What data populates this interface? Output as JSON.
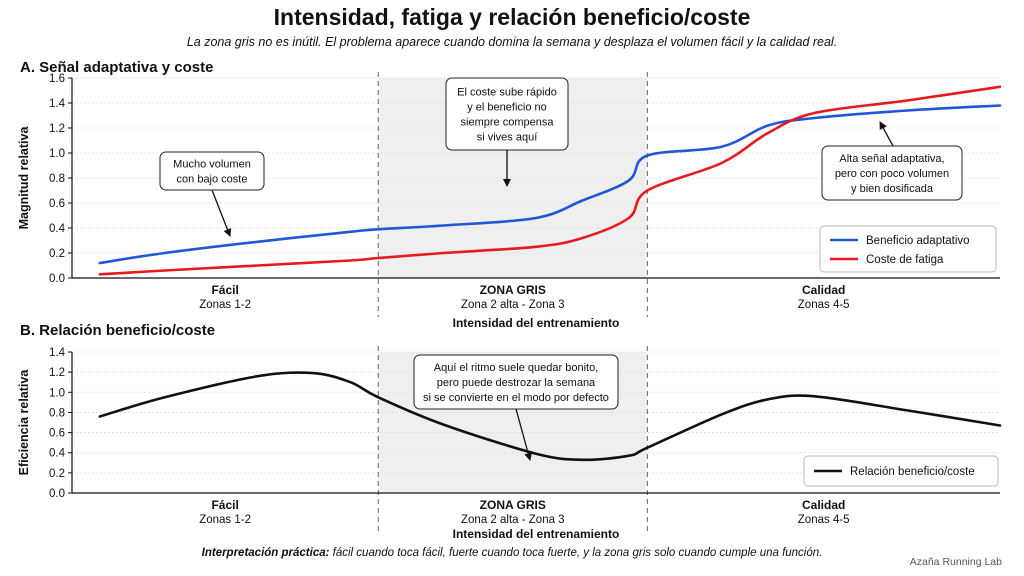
{
  "title": "Intensidad, fatiga y relación beneficio/coste",
  "subtitle": "La zona gris no es inútil. El problema aparece cuando domina la semana y desplaza el volumen fácil y la calidad real.",
  "footer": {
    "bold": "Interpretación práctica:",
    "rest": " fácil cuando toca fácil, fuerte cuando toca fuerte, y la zona gris solo cuando cumple una función."
  },
  "brand": "Azaña Running Lab",
  "colors": {
    "benefit": "#1f57d6",
    "cost": "#e8191f",
    "ratio": "#111111",
    "grey_zone": "#efefef"
  },
  "chart_data": [
    {
      "type": "line",
      "panel_title": "A.  Señal adaptativa y coste",
      "xlabel": "Intensidad del entrenamiento",
      "ylabel": "Magnitud relativa",
      "xlim": [
        0,
        10
      ],
      "ylim": [
        0,
        1.6
      ],
      "yticks": [
        "0.0",
        "0.2",
        "0.4",
        "0.6",
        "0.8",
        "1.0",
        "1.2",
        "1.4",
        "1.6"
      ],
      "grid": true,
      "shaded_region": [
        3.3,
        6.2
      ],
      "zones": [
        {
          "name": "Fácil",
          "sub": "Zonas 1-2"
        },
        {
          "name": "ZONA GRIS",
          "sub": "Zona 2 alta - Zona 3"
        },
        {
          "name": "Calidad",
          "sub": "Zonas 4-5"
        }
      ],
      "x": [
        0.3,
        1.0,
        2.0,
        3.0,
        3.3,
        4.0,
        5.0,
        5.5,
        6.0,
        6.2,
        7.0,
        7.5,
        8.0,
        9.0,
        10.0
      ],
      "series": [
        {
          "name": "Beneficio adaptativo",
          "values": [
            0.12,
            0.2,
            0.29,
            0.37,
            0.39,
            0.42,
            0.48,
            0.62,
            0.78,
            0.98,
            1.05,
            1.22,
            1.28,
            1.34,
            1.38
          ]
        },
        {
          "name": "Coste de fatiga",
          "values": [
            0.03,
            0.06,
            0.1,
            0.14,
            0.16,
            0.2,
            0.25,
            0.32,
            0.48,
            0.7,
            0.92,
            1.16,
            1.32,
            1.42,
            1.53
          ]
        }
      ],
      "legend": "bottom-right",
      "annotations": [
        "Mucho volumen\ncon bajo coste",
        "El coste sube rápido\ny el beneficio no\nsiempre compensa\nsi vives aquí",
        "Alta señal adaptativa,\npero con poco volumen\ny bien dosificada"
      ]
    },
    {
      "type": "line",
      "panel_title": "B.  Relación beneficio/coste",
      "xlabel": "Intensidad del entrenamiento",
      "ylabel": "Eficiencia relativa",
      "xlim": [
        0,
        10
      ],
      "ylim": [
        0,
        1.4
      ],
      "yticks": [
        "0.0",
        "0.2",
        "0.4",
        "0.6",
        "0.8",
        "1.0",
        "1.2",
        "1.4"
      ],
      "grid": true,
      "shaded_region": [
        3.3,
        6.2
      ],
      "zones": [
        {
          "name": "Fácil",
          "sub": "Zonas 1-2"
        },
        {
          "name": "ZONA GRIS",
          "sub": "Zona 2 alta - Zona 3"
        },
        {
          "name": "Calidad",
          "sub": "Zonas 4-5"
        }
      ],
      "x": [
        0.3,
        1.0,
        2.0,
        2.6,
        3.0,
        3.3,
        4.0,
        5.0,
        5.5,
        6.0,
        6.2,
        7.0,
        7.5,
        8.0,
        9.0,
        10.0
      ],
      "series": [
        {
          "name": "Relación beneficio/coste",
          "values": [
            0.76,
            0.95,
            1.16,
            1.19,
            1.1,
            0.95,
            0.68,
            0.39,
            0.33,
            0.37,
            0.45,
            0.78,
            0.93,
            0.96,
            0.82,
            0.67
          ]
        }
      ],
      "legend": "bottom-right",
      "annotations": [
        "Aquí el ritmo suele quedar bonito,\npero puede destrozar la semana\nsi se convierte en el modo por defecto"
      ]
    }
  ]
}
